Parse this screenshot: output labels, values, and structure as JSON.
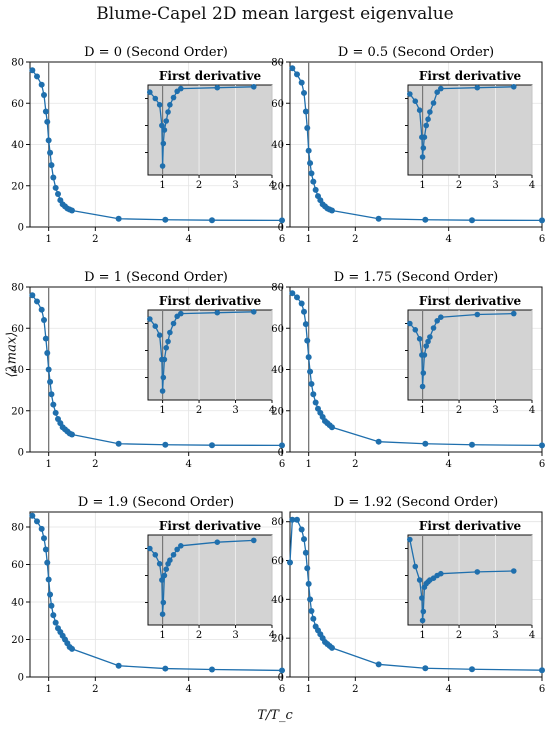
{
  "figure": {
    "title": "Blume-Capel 2D mean largest eigenvalue",
    "xlabel": "T/T_c",
    "ylabel": "⟨λmax⟩",
    "inset_title": "First derivative",
    "accent_color": "#1f6fad",
    "inset_bg_color": "#d3d3d3"
  },
  "chart_data": [
    {
      "type": "line",
      "title": "D = 0 (Second Order)",
      "xlim": [
        0.6,
        6
      ],
      "ylim": [
        0,
        80
      ],
      "xticks": [
        1,
        2,
        4,
        6
      ],
      "yticks": [
        0,
        20,
        40,
        60,
        80
      ],
      "critical_line_x": 1,
      "x": [
        0.65,
        0.75,
        0.85,
        0.9,
        0.94,
        0.97,
        1.0,
        1.03,
        1.06,
        1.1,
        1.15,
        1.2,
        1.25,
        1.3,
        1.35,
        1.4,
        1.45,
        1.5,
        2.5,
        3.5,
        4.5,
        6.0
      ],
      "y": [
        76,
        73,
        69,
        64,
        56,
        51,
        42,
        36,
        30,
        24,
        19,
        16,
        13,
        11,
        10,
        9,
        8.5,
        8,
        4,
        3.5,
        3.3,
        3.2
      ],
      "inset": {
        "xlim": [
          0.6,
          4
        ],
        "xticks": [
          1,
          2,
          3,
          4
        ],
        "x": [
          0.65,
          0.8,
          0.92,
          0.98,
          1.0,
          1.02,
          1.05,
          1.1,
          1.15,
          1.2,
          1.3,
          1.4,
          1.5,
          2.5,
          3.5
        ],
        "y": [
          0.92,
          0.85,
          0.78,
          0.55,
          0.1,
          0.35,
          0.5,
          0.6,
          0.7,
          0.78,
          0.86,
          0.93,
          0.96,
          0.97,
          0.98
        ]
      }
    },
    {
      "type": "line",
      "title": "D = 0.5 (Second Order)",
      "xlim": [
        0.6,
        6
      ],
      "ylim": [
        0,
        80
      ],
      "xticks": [
        1,
        2,
        4,
        6
      ],
      "yticks": [
        0,
        20,
        40,
        60,
        80
      ],
      "critical_line_x": 1,
      "x": [
        0.65,
        0.75,
        0.85,
        0.9,
        0.94,
        0.97,
        1.0,
        1.03,
        1.06,
        1.1,
        1.15,
        1.2,
        1.25,
        1.3,
        1.35,
        1.4,
        1.45,
        1.5,
        2.5,
        3.5,
        4.5,
        6.0
      ],
      "y": [
        77,
        74,
        70,
        65,
        56,
        48,
        37,
        31,
        26,
        22,
        18,
        15,
        13,
        11,
        10,
        9,
        8.5,
        8,
        4,
        3.5,
        3.3,
        3.2
      ],
      "inset": {
        "xlim": [
          0.6,
          4
        ],
        "xticks": [
          1,
          2,
          3,
          4
        ],
        "x": [
          0.65,
          0.8,
          0.92,
          0.98,
          1.0,
          1.02,
          1.05,
          1.1,
          1.15,
          1.2,
          1.3,
          1.4,
          1.5,
          2.5,
          3.5
        ],
        "y": [
          0.9,
          0.82,
          0.72,
          0.42,
          0.2,
          0.3,
          0.42,
          0.55,
          0.62,
          0.7,
          0.8,
          0.92,
          0.96,
          0.97,
          0.98
        ]
      }
    },
    {
      "type": "line",
      "title": "D = 1 (Second Order)",
      "xlim": [
        0.6,
        6
      ],
      "ylim": [
        0,
        80
      ],
      "xticks": [
        1,
        2,
        4,
        6
      ],
      "yticks": [
        0,
        20,
        40,
        60,
        80
      ],
      "critical_line_x": 1,
      "x": [
        0.65,
        0.75,
        0.85,
        0.9,
        0.94,
        0.97,
        1.0,
        1.03,
        1.06,
        1.1,
        1.15,
        1.2,
        1.25,
        1.3,
        1.35,
        1.4,
        1.45,
        1.5,
        2.5,
        3.5,
        4.5,
        6.0
      ],
      "y": [
        76,
        73,
        69,
        64,
        55,
        48,
        40,
        34,
        28,
        23,
        19,
        16,
        14,
        12,
        11,
        10,
        9,
        8.5,
        4,
        3.5,
        3.3,
        3.2
      ],
      "inset": {
        "xlim": [
          0.6,
          4
        ],
        "xticks": [
          1,
          2,
          3,
          4
        ],
        "x": [
          0.65,
          0.8,
          0.92,
          0.98,
          1.0,
          1.02,
          1.05,
          1.1,
          1.15,
          1.2,
          1.3,
          1.4,
          1.5,
          2.5,
          3.5
        ],
        "y": [
          0.9,
          0.82,
          0.72,
          0.45,
          0.1,
          0.25,
          0.45,
          0.58,
          0.65,
          0.75,
          0.85,
          0.93,
          0.96,
          0.97,
          0.98
        ]
      }
    },
    {
      "type": "line",
      "title": "D = 1.75 (Second Order)",
      "xlim": [
        0.6,
        6
      ],
      "ylim": [
        0,
        80
      ],
      "xticks": [
        1,
        2,
        4,
        6
      ],
      "yticks": [
        0,
        20,
        40,
        60,
        80
      ],
      "critical_line_x": 1,
      "x": [
        0.65,
        0.75,
        0.85,
        0.9,
        0.94,
        0.97,
        1.0,
        1.03,
        1.06,
        1.1,
        1.15,
        1.2,
        1.25,
        1.3,
        1.35,
        1.4,
        1.45,
        1.5,
        2.5,
        3.5,
        4.5,
        6.0
      ],
      "y": [
        77,
        75,
        72,
        68,
        62,
        54,
        46,
        39,
        33,
        28,
        24,
        21,
        19,
        17,
        15,
        14,
        13,
        12,
        5,
        4,
        3.5,
        3.2
      ],
      "inset": {
        "xlim": [
          0.6,
          4
        ],
        "xticks": [
          1,
          2,
          3,
          4
        ],
        "x": [
          0.65,
          0.8,
          0.92,
          0.98,
          1.0,
          1.02,
          1.05,
          1.1,
          1.15,
          1.2,
          1.3,
          1.4,
          1.5,
          2.5,
          3.5
        ],
        "y": [
          0.85,
          0.78,
          0.68,
          0.5,
          0.15,
          0.3,
          0.5,
          0.6,
          0.65,
          0.7,
          0.8,
          0.88,
          0.92,
          0.95,
          0.96
        ]
      }
    },
    {
      "type": "line",
      "title": "D = 1.9 (Second Order)",
      "xlim": [
        0.6,
        6
      ],
      "ylim": [
        0,
        88
      ],
      "xticks": [
        1,
        2,
        4,
        6
      ],
      "yticks": [
        0,
        20,
        40,
        60,
        80
      ],
      "critical_line_x": 1,
      "x": [
        0.65,
        0.75,
        0.85,
        0.9,
        0.94,
        0.97,
        1.0,
        1.03,
        1.06,
        1.1,
        1.15,
        1.2,
        1.25,
        1.3,
        1.35,
        1.4,
        1.45,
        1.5,
        2.5,
        3.5,
        4.5,
        6.0
      ],
      "y": [
        86,
        83,
        79,
        74,
        68,
        61,
        52,
        44,
        38,
        33,
        29,
        26,
        24,
        22,
        20,
        18,
        16,
        15,
        6,
        4.5,
        4,
        3.5
      ],
      "inset": {
        "xlim": [
          0.6,
          4
        ],
        "xticks": [
          1,
          2,
          3,
          4
        ],
        "x": [
          0.65,
          0.8,
          0.92,
          0.98,
          1.0,
          1.02,
          1.05,
          1.1,
          1.15,
          1.2,
          1.3,
          1.4,
          1.5,
          2.5,
          3.5
        ],
        "y": [
          0.85,
          0.78,
          0.68,
          0.5,
          0.12,
          0.25,
          0.55,
          0.62,
          0.68,
          0.72,
          0.78,
          0.84,
          0.88,
          0.92,
          0.94
        ]
      }
    },
    {
      "type": "line",
      "title": "D = 1.92 (Second Order)",
      "xlim": [
        0.6,
        6
      ],
      "ylim": [
        0,
        85
      ],
      "xticks": [
        1,
        2,
        4,
        6
      ],
      "yticks": [
        0,
        20,
        40,
        60,
        80
      ],
      "critical_line_x": 1,
      "x": [
        0.6,
        0.65,
        0.75,
        0.85,
        0.9,
        0.94,
        0.97,
        1.0,
        1.03,
        1.06,
        1.1,
        1.15,
        1.2,
        1.25,
        1.3,
        1.35,
        1.4,
        1.45,
        1.5,
        2.5,
        3.5,
        4.5,
        6.0
      ],
      "y": [
        59,
        81,
        81,
        76,
        71,
        64,
        56,
        48,
        40,
        34,
        30,
        26,
        24,
        22,
        20,
        18,
        17,
        16,
        15,
        6.5,
        4.5,
        4,
        3.5
      ],
      "inset": {
        "xlim": [
          0.6,
          4
        ],
        "xticks": [
          1,
          2,
          3,
          4
        ],
        "x": [
          0.65,
          0.8,
          0.92,
          0.98,
          1.0,
          1.02,
          1.05,
          1.1,
          1.15,
          1.2,
          1.3,
          1.4,
          1.5,
          2.5,
          3.5
        ],
        "y": [
          0.95,
          0.65,
          0.5,
          0.3,
          0.05,
          0.15,
          0.42,
          0.46,
          0.48,
          0.5,
          0.52,
          0.55,
          0.57,
          0.59,
          0.6
        ]
      }
    }
  ]
}
